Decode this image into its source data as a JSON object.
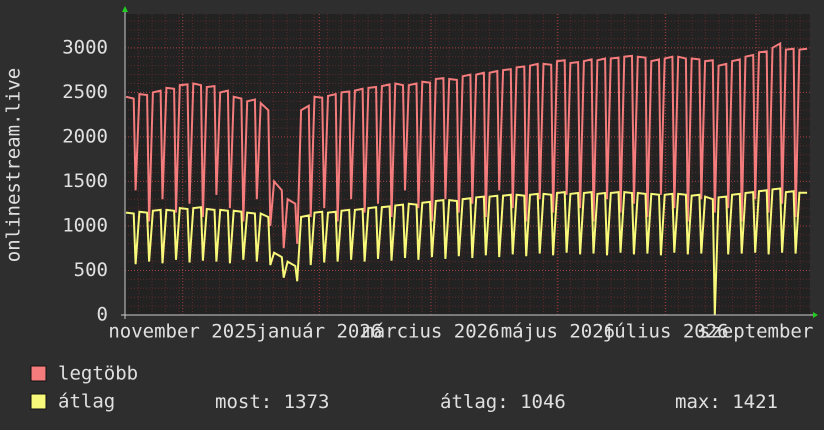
{
  "chart_data": {
    "type": "line",
    "y_label": "onlinestream.live",
    "x": [
      0.5,
      4.5,
      5.5,
      7.5,
      11.5,
      12.5,
      14.5,
      18.5,
      19.5,
      21.5,
      25.5,
      26.5,
      28.5,
      32.5,
      33.5,
      35.5,
      39.5,
      40.5,
      42.5,
      46.5,
      47.5,
      49.5,
      53.5,
      54.5,
      56.5,
      60.5,
      61.5,
      63.5,
      67.5,
      68.5,
      70.5,
      74.5,
      75.5,
      77.5,
      81.5,
      82.5,
      84.5,
      88.5,
      89.5,
      91.5,
      95.5,
      96.5,
      98.5,
      102.5,
      103.5,
      105.5,
      109.5,
      110.5,
      112.5,
      116.5,
      117.5,
      119.5,
      123.5,
      124.5,
      126.5,
      130.5,
      131.5,
      133.5,
      137.5,
      138.5,
      140.5,
      144.5,
      145.5,
      147.5,
      151.5,
      152.5,
      154.5,
      158.5,
      159.5,
      161.5,
      165.5,
      166.5,
      168.5,
      172.5,
      173.5,
      175.5,
      179.5,
      180.5,
      182.5,
      186.5,
      187.5,
      189.5,
      193.5,
      194.5,
      196.5,
      200.5,
      201.5,
      203.5,
      207.5,
      208.5,
      210.5,
      214.5,
      215.5,
      217.5,
      221.5,
      222.5,
      224.5,
      228.5,
      229.5,
      231.5,
      235.5,
      236.5,
      238.5,
      242.5,
      243.5,
      245.5,
      249.5,
      250.5,
      252.5,
      256.5,
      257.5,
      259.5,
      263.5,
      264.5,
      266.5,
      270.5,
      271.5,
      273.5,
      277.5,
      278.5,
      280.5,
      284.5,
      285.5,
      287.5,
      291.5,
      292.5,
      294.5,
      298.5,
      299.5,
      301.5,
      305.5,
      306.5,
      308.5,
      312.5,
      313.5,
      315.5,
      319.5,
      320.5,
      322.5,
      326.5,
      327.5,
      329.5,
      333.5,
      334.5,
      336.5,
      340.5,
      341.5,
      343.5,
      347.5,
      348.5,
      350.5,
      354.5
    ],
    "series": [
      {
        "name": "legtöbb",
        "color": "#f47c7c",
        "values": [
          2450,
          2430,
          1400,
          2480,
          2470,
          1050,
          2500,
          2520,
          1300,
          2550,
          2540,
          1150,
          2580,
          2590,
          1250,
          2600,
          2580,
          1100,
          2560,
          2570,
          1350,
          2500,
          2520,
          1200,
          2450,
          2430,
          1050,
          2400,
          2420,
          1300,
          2380,
          2300,
          1000,
          1500,
          1400,
          750,
          1300,
          1250,
          800,
          2300,
          2350,
          1100,
          2450,
          2440,
          1200,
          2460,
          2480,
          1050,
          2500,
          2510,
          1300,
          2520,
          2540,
          1150,
          2550,
          2560,
          1250,
          2570,
          2590,
          1100,
          2600,
          2580,
          1400,
          2580,
          2600,
          1200,
          2620,
          2610,
          1050,
          2650,
          2660,
          1300,
          2650,
          2640,
          1150,
          2680,
          2700,
          1250,
          2700,
          2720,
          1100,
          2720,
          2740,
          1400,
          2750,
          2760,
          1200,
          2780,
          2790,
          1050,
          2800,
          2820,
          1300,
          2820,
          2810,
          1150,
          2850,
          2860,
          1350,
          2830,
          2840,
          1200,
          2850,
          2870,
          1050,
          2860,
          2880,
          1300,
          2880,
          2890,
          1150,
          2900,
          2910,
          1250,
          2900,
          2890,
          1100,
          2850,
          2870,
          1350,
          2880,
          2900,
          1200,
          2900,
          2880,
          1050,
          2880,
          2870,
          1300,
          2850,
          2860,
          1150,
          2800,
          2820,
          1200,
          2850,
          2870,
          1050,
          2900,
          2920,
          1300,
          2950,
          2960,
          1150,
          3000,
          3050,
          1250,
          2980,
          2990,
          1100,
          2980,
          2990
        ]
      },
      {
        "name": "átlag",
        "color": "#f8f87a",
        "values": [
          1150,
          1140,
          570,
          1160,
          1150,
          600,
          1170,
          1180,
          580,
          1180,
          1170,
          620,
          1200,
          1190,
          590,
          1200,
          1210,
          610,
          1190,
          1180,
          600,
          1180,
          1170,
          580,
          1170,
          1160,
          620,
          1150,
          1140,
          600,
          1140,
          1100,
          560,
          700,
          650,
          420,
          600,
          550,
          380,
          1100,
          1120,
          560,
          1150,
          1160,
          590,
          1150,
          1160,
          600,
          1170,
          1180,
          620,
          1180,
          1190,
          600,
          1200,
          1210,
          630,
          1210,
          1220,
          610,
          1230,
          1240,
          640,
          1250,
          1240,
          620,
          1260,
          1270,
          650,
          1280,
          1290,
          630,
          1290,
          1280,
          660,
          1300,
          1310,
          640,
          1320,
          1330,
          670,
          1330,
          1340,
          650,
          1340,
          1350,
          680,
          1350,
          1340,
          660,
          1350,
          1360,
          690,
          1360,
          1350,
          670,
          1370,
          1380,
          700,
          1360,
          1370,
          680,
          1370,
          1380,
          690,
          1360,
          1370,
          670,
          1370,
          1380,
          700,
          1380,
          1370,
          680,
          1370,
          1360,
          690,
          1360,
          1350,
          670,
          1350,
          1360,
          700,
          1360,
          1350,
          680,
          1340,
          1350,
          690,
          1330,
          1300,
          0,
          1320,
          1330,
          680,
          1350,
          1360,
          690,
          1370,
          1380,
          700,
          1390,
          1400,
          680,
          1410,
          1421,
          700,
          1380,
          1390,
          690,
          1373,
          1373
        ]
      }
    ],
    "xlim": [
      0,
      356
    ],
    "xticks": [
      {
        "value": 30,
        "label": "november 2025"
      },
      {
        "value": 101,
        "label": "január 2026"
      },
      {
        "value": 159,
        "label": "március 2026"
      },
      {
        "value": 225,
        "label": "május 2026"
      },
      {
        "value": 281,
        "label": "július 2026"
      },
      {
        "value": 328,
        "label": "szeptember"
      }
    ],
    "ylim": [
      0,
      3380
    ],
    "yticks": [
      0,
      500,
      1000,
      1500,
      2000,
      2500,
      3000
    ],
    "grid": true,
    "stats": [
      {
        "label": "most:",
        "value": 1373
      },
      {
        "label": "átlag:",
        "value": 1046
      },
      {
        "label": "max:",
        "value": 1421
      }
    ]
  }
}
